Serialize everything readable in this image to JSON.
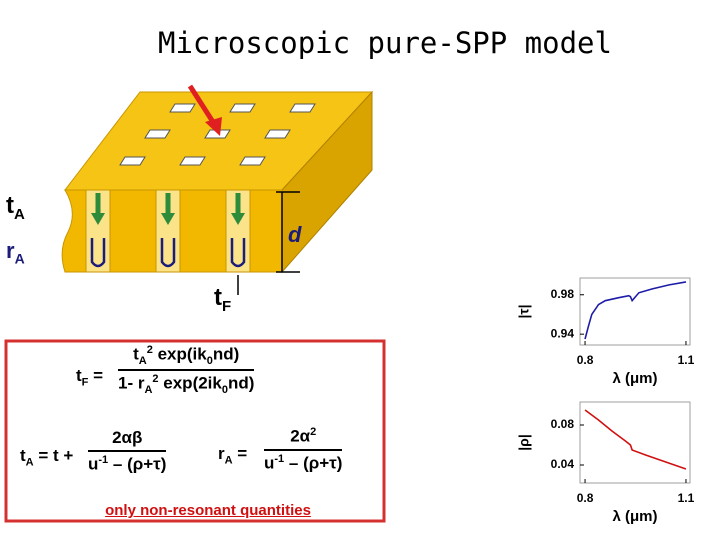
{
  "title": "Microscopic pure-SPP model",
  "diagram": {
    "t_A": [
      "t",
      "A"
    ],
    "r_A": [
      "r",
      "A"
    ],
    "d": "d",
    "t_F": [
      "t",
      "F"
    ]
  },
  "formulas": {
    "tF": {
      "lhs": [
        "t",
        "F",
        " ="
      ],
      "num": [
        "t",
        "A",
        "2",
        " exp(ik",
        "0",
        "nd)"
      ],
      "den": [
        "1- r",
        "A",
        "2",
        " exp(2ik",
        "0",
        "nd)"
      ]
    },
    "tA": {
      "lhs": [
        "t",
        "A",
        " = t +"
      ],
      "num": [
        "2αβ"
      ],
      "den": [
        "u",
        "-1",
        " – (ρ+τ)"
      ]
    },
    "rA": {
      "lhs": [
        "r",
        "A",
        " ="
      ],
      "num": [
        "2α",
        "2"
      ],
      "den": [
        "u",
        "-1",
        " – (ρ+τ)"
      ]
    }
  },
  "note": "only non-resonant quantities",
  "chart_data": [
    {
      "type": "line",
      "ylabel": "|τ|",
      "xlabel": "λ (μm)",
      "x": [
        0.8,
        0.81,
        0.82,
        0.84,
        0.86,
        0.9,
        0.93,
        0.935,
        0.94,
        0.96,
        1.0,
        1.05,
        1.1
      ],
      "series": [
        {
          "color": "#1c1ca8",
          "values": [
            0.935,
            0.948,
            0.96,
            0.97,
            0.974,
            0.977,
            0.979,
            0.978,
            0.974,
            0.982,
            0.986,
            0.99,
            0.993
          ]
        }
      ],
      "xlim": [
        0.785,
        1.112
      ],
      "ylim": [
        0.929,
        0.997
      ],
      "xticks": [
        0.8,
        1.1
      ],
      "yticks": [
        0.94,
        0.98
      ]
    },
    {
      "type": "line",
      "ylabel": "|ρ|",
      "xlabel": "λ (μm)",
      "x": [
        0.8,
        0.84,
        0.88,
        0.92,
        0.935,
        0.94,
        0.98,
        1.04,
        1.1
      ],
      "series": [
        {
          "color": "#d01010",
          "values": [
            0.095,
            0.085,
            0.074,
            0.064,
            0.06,
            0.055,
            0.05,
            0.043,
            0.036
          ]
        }
      ],
      "xlim": [
        0.785,
        1.112
      ],
      "ylim": [
        0.022,
        0.103
      ],
      "xticks": [
        0.8,
        1.1
      ],
      "yticks": [
        0.04,
        0.08
      ]
    }
  ]
}
